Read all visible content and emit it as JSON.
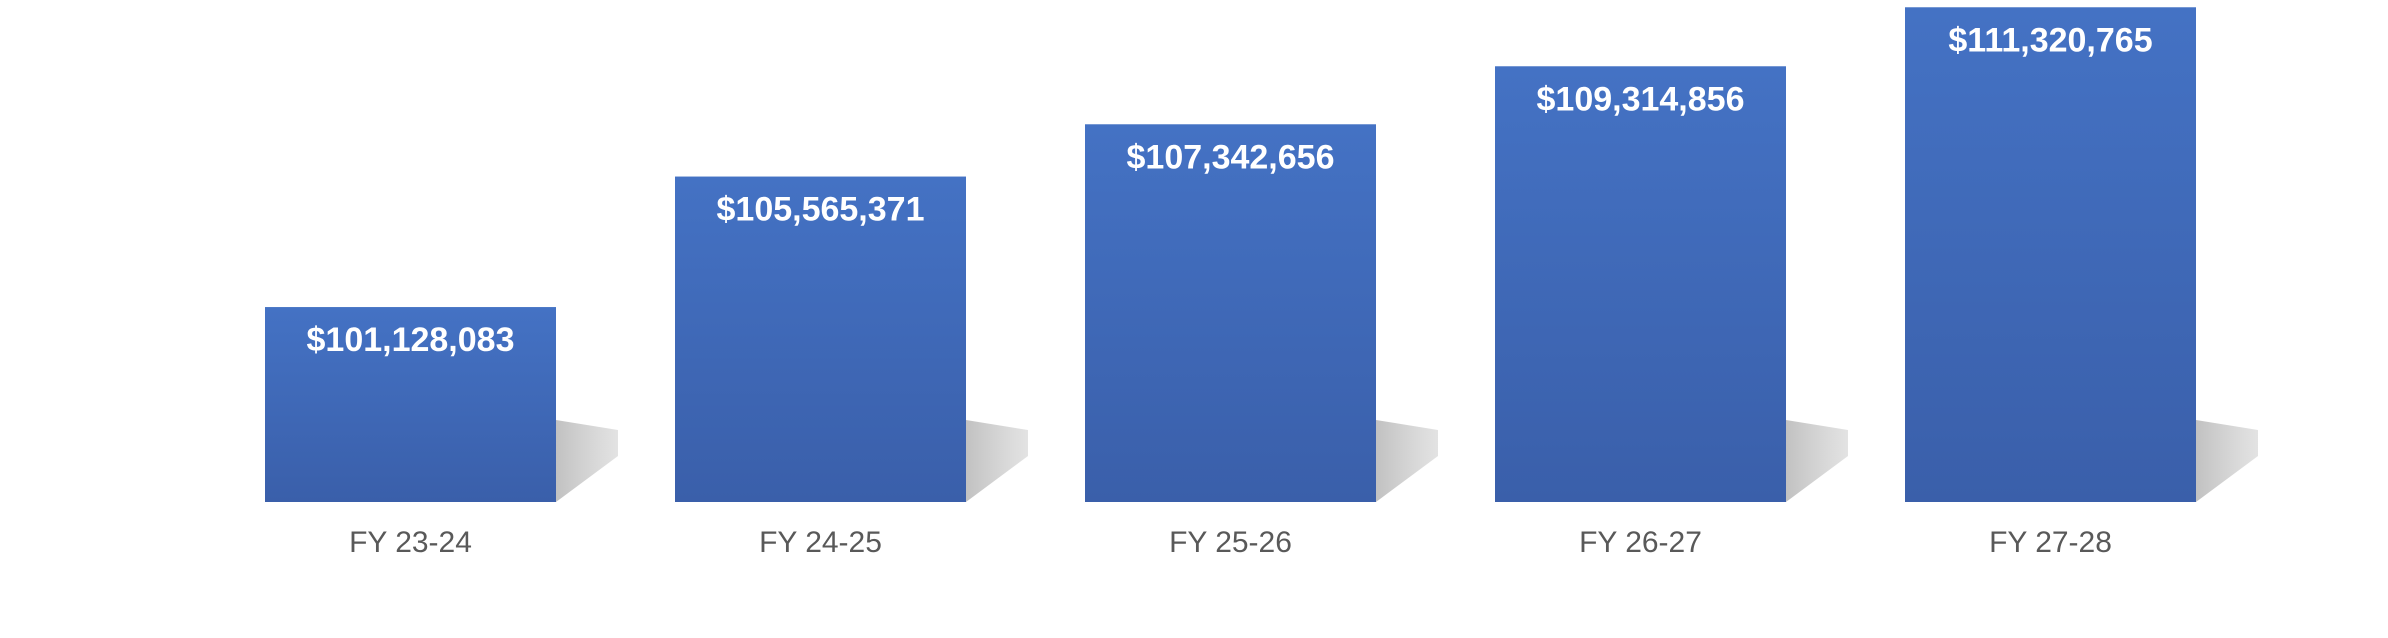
{
  "chart_data": {
    "type": "bar",
    "categories": [
      "FY 23-24",
      "FY 24-25",
      "FY 25-26",
      "FY 26-27",
      "FY 27-28"
    ],
    "values": [
      101128083,
      105565371,
      107342656,
      109314856,
      111320765
    ],
    "data_labels": [
      "$101,128,083",
      "$105,565,371",
      "$107,342,656",
      "$109,314,856",
      "$111,320,765"
    ],
    "title": "",
    "xlabel": "",
    "ylabel": "",
    "ylim": [
      94500000,
      111500000
    ],
    "grid": false,
    "legend": "none",
    "colors": {
      "bar_top": "#4472C4",
      "bar_bottom": "#3A5FAA",
      "shadow": "#C8C8C8",
      "tick_text": "#595959",
      "label_text": "#FFFFFF"
    }
  }
}
